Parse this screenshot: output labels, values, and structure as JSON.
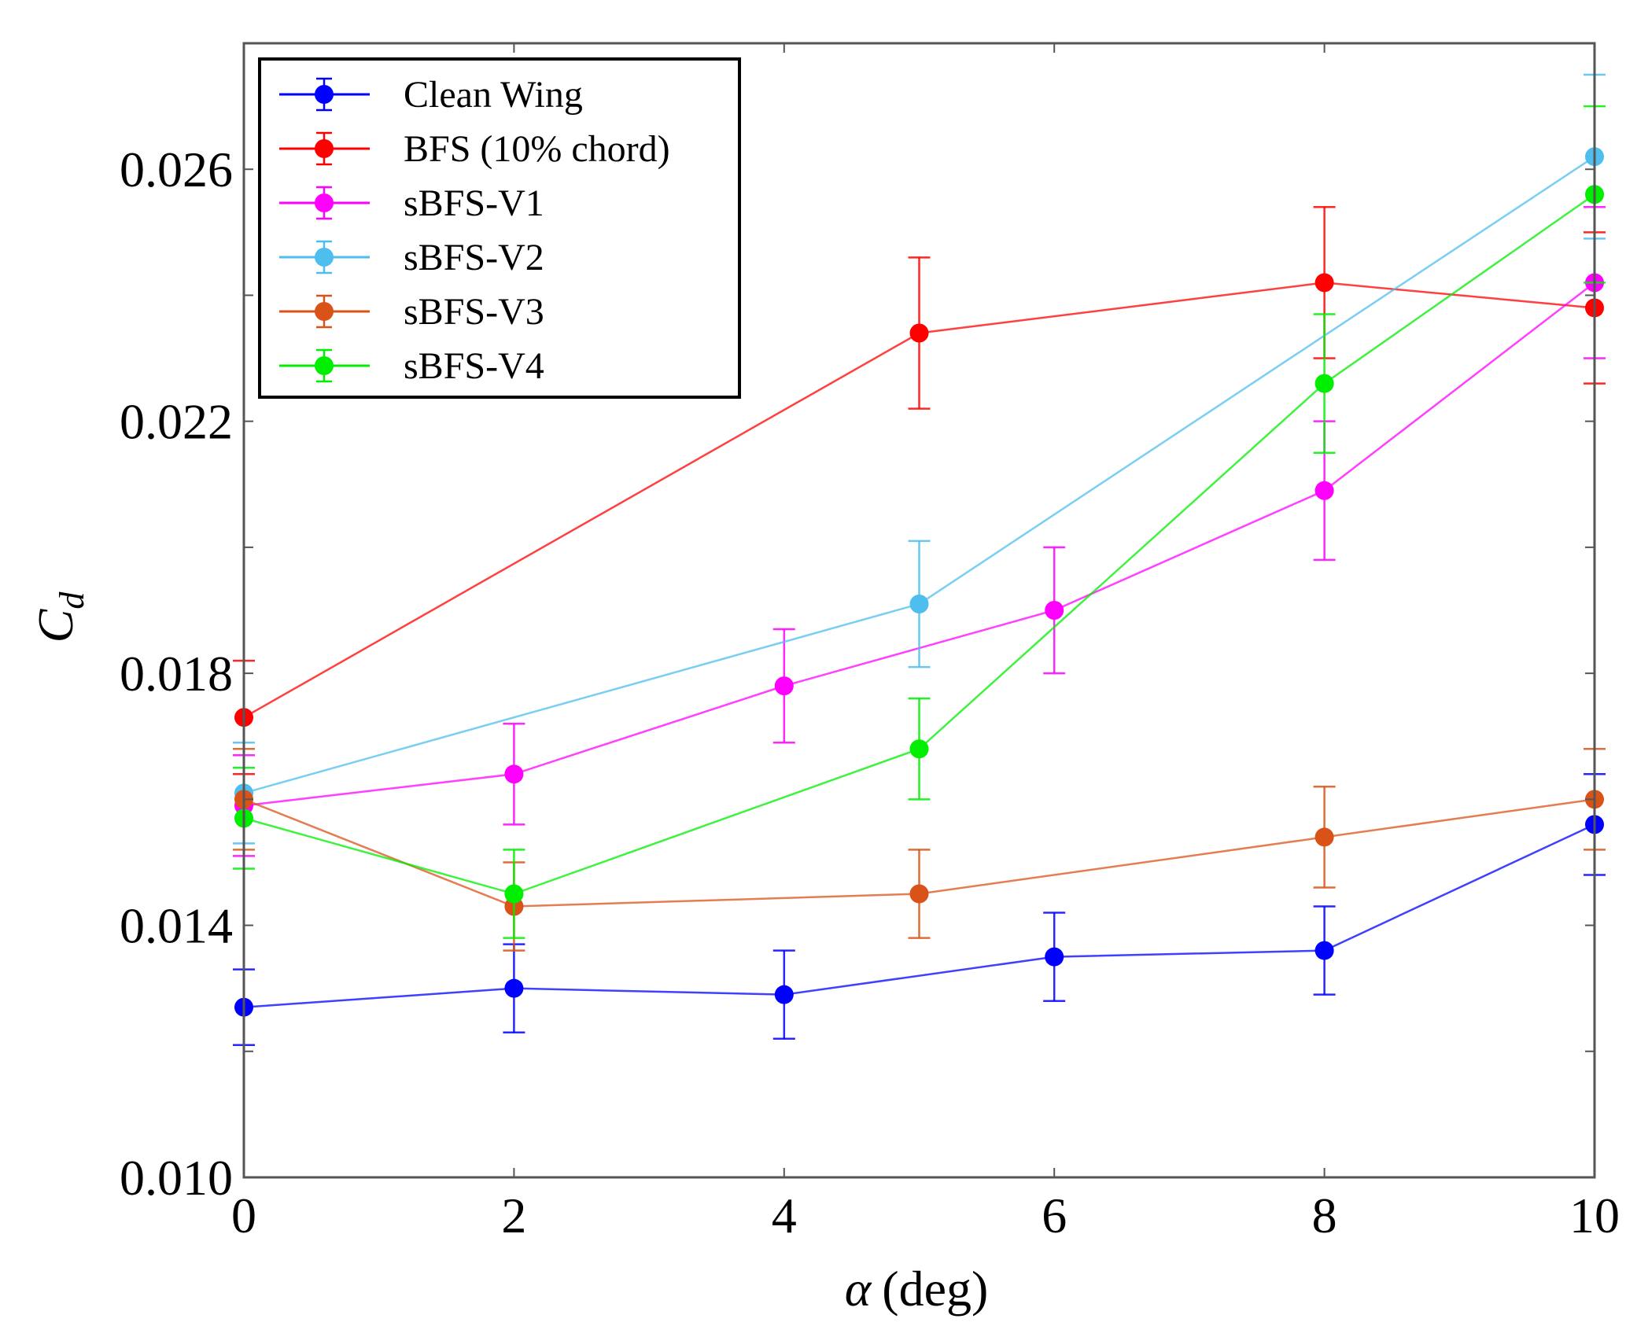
{
  "chart_data": {
    "type": "line",
    "title": "",
    "xlabel_symbol": "α",
    "xlabel_unit": "(deg)",
    "ylabel_base": "C",
    "ylabel_sub": "d",
    "xlim": [
      0,
      10
    ],
    "ylim": [
      0.01,
      0.028
    ],
    "xticks": [
      0,
      2,
      4,
      6,
      8,
      10
    ],
    "xtick_labels": [
      "0",
      "2",
      "4",
      "6",
      "8",
      "10"
    ],
    "yticks": [
      0.01,
      0.014,
      0.018,
      0.022,
      0.026
    ],
    "ytick_labels": [
      "0.010",
      "0.014",
      "0.018",
      "0.022",
      "0.026"
    ],
    "legend_position": "top-left",
    "series": [
      {
        "name": "Clean Wing",
        "color": "#0000ff",
        "x": [
          0,
          2,
          4,
          6,
          8,
          10
        ],
        "y": [
          0.0127,
          0.013,
          0.0129,
          0.0135,
          0.0136,
          0.0156
        ],
        "err": [
          0.0006,
          0.0007,
          0.0007,
          0.0007,
          0.0007,
          0.0008
        ]
      },
      {
        "name": "BFS (10% chord)",
        "color": "#ff0000",
        "x": [
          0,
          5,
          8,
          10
        ],
        "y": [
          0.0173,
          0.0234,
          0.0242,
          0.0238
        ],
        "err": [
          0.0009,
          0.0012,
          0.0012,
          0.0012
        ]
      },
      {
        "name": "sBFS-V1",
        "color": "#ff00ff",
        "x": [
          0,
          2,
          4,
          6,
          8,
          10
        ],
        "y": [
          0.0159,
          0.0164,
          0.0178,
          0.019,
          0.0209,
          0.0242
        ],
        "err": [
          0.0008,
          0.0008,
          0.0009,
          0.001,
          0.0011,
          0.0012
        ]
      },
      {
        "name": "sBFS-V2",
        "color": "#4dbeee",
        "x": [
          0,
          5,
          10
        ],
        "y": [
          0.0161,
          0.0191,
          0.0262
        ],
        "err": [
          0.0008,
          0.001,
          0.0013
        ]
      },
      {
        "name": "sBFS-V3",
        "color": "#d95319",
        "x": [
          0,
          2,
          5,
          8,
          10
        ],
        "y": [
          0.016,
          0.0143,
          0.0145,
          0.0154,
          0.016
        ],
        "err": [
          0.0008,
          0.0007,
          0.0007,
          0.0008,
          0.0008
        ]
      },
      {
        "name": "sBFS-V4",
        "color": "#00ee00",
        "x": [
          0,
          2,
          5,
          8,
          10
        ],
        "y": [
          0.0157,
          0.0145,
          0.0168,
          0.0226,
          0.0256
        ],
        "err": [
          0.0008,
          0.0007,
          0.0008,
          0.0011,
          0.0014
        ]
      }
    ]
  }
}
